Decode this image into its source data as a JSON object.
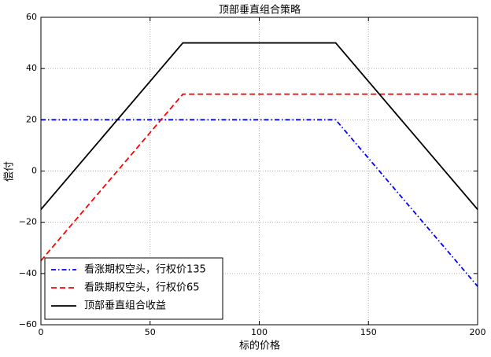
{
  "chart_data": {
    "type": "line",
    "title": "顶部垂直组合策略",
    "x_label": "标的价格",
    "y_label": "偿付",
    "x": [
      0,
      65,
      135,
      200
    ],
    "series": [
      {
        "name": "看涨期权空头，行权价135",
        "color": "#0000ff",
        "linestyle": "dashdot",
        "values": [
          20,
          20,
          20,
          -45
        ]
      },
      {
        "name": "看跌期权空头，行权价65",
        "color": "#ff0000",
        "linestyle": "dashed",
        "values": [
          -35,
          30,
          30,
          30
        ]
      },
      {
        "name": "顶部垂直组合收益",
        "color": "#000000",
        "linestyle": "solid",
        "values": [
          -15,
          50,
          50,
          -15
        ]
      }
    ],
    "xlim": [
      0,
      200
    ],
    "xticks": [
      0,
      50,
      100,
      150,
      200
    ],
    "ylim": [
      -60,
      60
    ],
    "yticks": [
      {
        "value": -60,
        "label": "−60"
      },
      {
        "value": -40,
        "label": "−40"
      },
      {
        "value": -20,
        "label": "−20"
      },
      0,
      20,
      40,
      60
    ],
    "grid": true,
    "legend": "lower left"
  }
}
